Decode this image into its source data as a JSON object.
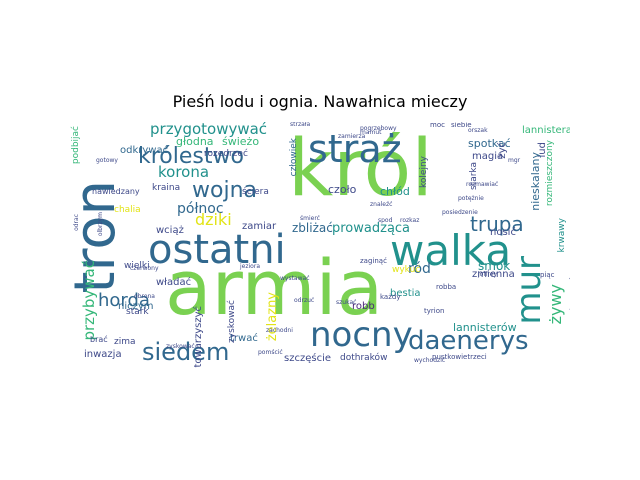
{
  "figure": {
    "title": "Pieśń lodu i ognia. Nawałnica mieczy"
  },
  "palette": {
    "green": "#7ad151",
    "lime": "#b5de2b",
    "teal": "#21918c",
    "blue": "#31688e",
    "slate": "#3e4989",
    "purple": "#482878",
    "seafoam": "#35b779",
    "yellow": "#e2e418"
  },
  "words": [
    {
      "id": "krol",
      "text": "król",
      "color": "#7ad151"
    },
    {
      "id": "armia",
      "text": "armia",
      "color": "#7ad151"
    },
    {
      "id": "tron",
      "text": "tron",
      "color": "#31688e"
    },
    {
      "id": "ostatni",
      "text": "ostatni",
      "color": "#31688e"
    },
    {
      "id": "walka",
      "text": "walka",
      "color": "#21918c"
    },
    {
      "id": "straz",
      "text": "straż",
      "color": "#31688e"
    },
    {
      "id": "nocny",
      "text": "nocny",
      "color": "#31688e"
    },
    {
      "id": "mur",
      "text": "mur",
      "color": "#21918c"
    },
    {
      "id": "daenerys",
      "text": "daenerys",
      "color": "#31688e"
    },
    {
      "id": "krolestwo",
      "text": "królestwo",
      "color": "#31688e"
    },
    {
      "id": "siedem",
      "text": "siedem",
      "color": "#31688e"
    },
    {
      "id": "wojna",
      "text": "wojna",
      "color": "#31688e"
    },
    {
      "id": "przygotowywac",
      "text": "przygotowywać",
      "color": "#21918c"
    },
    {
      "id": "horda",
      "text": "horda",
      "color": "#31688e"
    },
    {
      "id": "trupa",
      "text": "trupa",
      "color": "#31688e"
    },
    {
      "id": "korona",
      "text": "korona",
      "color": "#21918c"
    },
    {
      "id": "polnoc",
      "text": "północ",
      "color": "#31688e"
    },
    {
      "id": "dziki",
      "text": "dziki",
      "color": "#e2e418"
    },
    {
      "id": "prowadzaca",
      "text": "prowadząca",
      "color": "#21918c"
    },
    {
      "id": "przybywac",
      "text": "przybywać",
      "color": "#35b779"
    },
    {
      "id": "zywy",
      "text": "żywy",
      "color": "#35b779"
    },
    {
      "id": "lannisterow",
      "text": "lannisterów",
      "color": "#21918c"
    },
    {
      "id": "smok",
      "text": "smok",
      "color": "#21918c"
    },
    {
      "id": "rod",
      "text": "ród",
      "color": "#31688e"
    },
    {
      "id": "niczym",
      "text": "niczym",
      "color": "#31688e"
    },
    {
      "id": "zelazny",
      "text": "żelazny",
      "color": "#e2e418"
    },
    {
      "id": "zamiar",
      "text": "zamiar",
      "color": "#3e4989"
    },
    {
      "id": "wiaz",
      "text": "wciąż",
      "color": "#3e4989"
    },
    {
      "id": "zblizac",
      "text": "zbliżać",
      "color": "#31688e"
    },
    {
      "id": "towarzyszyc",
      "text": "towarzyszyć",
      "color": "#3e4989"
    },
    {
      "id": "trwac",
      "text": "trwać",
      "color": "#31688e"
    },
    {
      "id": "szczescie",
      "text": "szczęście",
      "color": "#3e4989"
    },
    {
      "id": "dothrakow",
      "text": "dothraków",
      "color": "#3e4989"
    },
    {
      "id": "inwazja",
      "text": "inwazja",
      "color": "#3e4989"
    },
    {
      "id": "zima",
      "text": "zima",
      "color": "#3e4989"
    },
    {
      "id": "czolo",
      "text": "czoło",
      "color": "#3e4989"
    },
    {
      "id": "chlod",
      "text": "chłód",
      "color": "#21918c"
    },
    {
      "id": "nosic",
      "text": "nosić",
      "color": "#3e4989"
    },
    {
      "id": "robb",
      "text": "robb",
      "color": "#482878"
    },
    {
      "id": "bestia",
      "text": "bestia",
      "color": "#21918c"
    },
    {
      "id": "zmienna",
      "text": "zmienna",
      "color": "#3e4989"
    },
    {
      "id": "wykuc",
      "text": "wykuć",
      "color": "#e2e418"
    },
    {
      "id": "magia",
      "text": "magia",
      "color": "#3e4989"
    },
    {
      "id": "spotkac",
      "text": "spotkać",
      "color": "#31688e"
    },
    {
      "id": "odkrywac",
      "text": "odkrywać",
      "color": "#31688e"
    },
    {
      "id": "glodna",
      "text": "głodna",
      "color": "#35b779"
    },
    {
      "id": "swiezo",
      "text": "świeżo",
      "color": "#35b779"
    },
    {
      "id": "rozedrzec",
      "text": "rozedrzeć",
      "color": "#3e4989"
    },
    {
      "id": "czlowiek",
      "text": "człowiek",
      "color": "#31688e"
    },
    {
      "id": "lannisterami",
      "text": "lannisterami",
      "color": "#35b779"
    },
    {
      "id": "lud",
      "text": "lud",
      "color": "#3e4989"
    },
    {
      "id": "niesklalany",
      "text": "nieskalany",
      "color": "#31688e"
    },
    {
      "id": "rozmieszczony",
      "text": "rozmieszczony",
      "color": "#35b779"
    },
    {
      "id": "krwawy",
      "text": "krwawy",
      "color": "#21918c"
    },
    {
      "id": "starka",
      "text": "starka",
      "color": "#3e4989"
    },
    {
      "id": "zyc",
      "text": "żyć",
      "color": "#3e4989"
    },
    {
      "id": "kolejny",
      "text": "kolejny",
      "color": "#3e4989"
    },
    {
      "id": "podbijac",
      "text": "podbijać",
      "color": "#35b779"
    },
    {
      "id": "kraina",
      "text": "kraina",
      "color": "#3e4989"
    },
    {
      "id": "sciera",
      "text": "ściera",
      "color": "#3e4989"
    },
    {
      "id": "wladac",
      "text": "władać",
      "color": "#3e4989"
    },
    {
      "id": "wielki",
      "text": "wielki",
      "color": "#3e4989"
    },
    {
      "id": "stark",
      "text": "stark",
      "color": "#3e4989"
    },
    {
      "id": "zyskowac",
      "text": "zyskować",
      "color": "#3e4989"
    },
    {
      "id": "brac",
      "text": "brać",
      "color": "#3e4989"
    },
    {
      "id": "chalia",
      "text": "chalia",
      "color": "#e2e418"
    },
    {
      "id": "nawiedzany",
      "text": "nawiedzany",
      "color": "#3e4989"
    },
    {
      "id": "odrac",
      "text": "odrac",
      "color": "#3e4989"
    },
    {
      "id": "wystawac",
      "text": "wystawać",
      "color": "#3e4989"
    },
    {
      "id": "zyskowac2",
      "text": "zyskować",
      "color": "#3e4989"
    },
    {
      "id": "jeziora",
      "text": "jeziora",
      "color": "#3e4989"
    },
    {
      "id": "posiedzenie",
      "text": "posiedzenie",
      "color": "#3e4989"
    },
    {
      "id": "znalezc",
      "text": "znaleźć",
      "color": "#3e4989"
    },
    {
      "id": "mamut",
      "text": "mamut",
      "color": "#3e4989"
    },
    {
      "id": "moc",
      "text": "moc",
      "color": "#3e4989"
    },
    {
      "id": "siebie",
      "text": "siebie",
      "color": "#3e4989"
    },
    {
      "id": "orszak",
      "text": "orszak",
      "color": "#3e4989"
    },
    {
      "id": "poteznie",
      "text": "potężnie",
      "color": "#3e4989"
    },
    {
      "id": "rozmawiac",
      "text": "rozmawiać",
      "color": "#3e4989"
    },
    {
      "id": "pomscic",
      "text": "pomścić",
      "color": "#3e4989"
    },
    {
      "id": "jofrey",
      "text": "joffrey",
      "color": "#3e4989"
    },
    {
      "id": "piac",
      "text": "piąc",
      "color": "#3e4989"
    },
    {
      "id": "tyrion",
      "text": "tyrion",
      "color": "#3e4989"
    },
    {
      "id": "pustkowietrzeci",
      "text": "pustkowietrzeci",
      "color": "#3e4989"
    },
    {
      "id": "wychodzic",
      "text": "wychodzić",
      "color": "#3e4989"
    },
    {
      "id": "kazdy",
      "text": "każdy",
      "color": "#3e4989"
    },
    {
      "id": "robba",
      "text": "robba",
      "color": "#3e4989"
    },
    {
      "id": "zaginac",
      "text": "zaginąć",
      "color": "#3e4989"
    },
    {
      "id": "spod",
      "text": "spod",
      "color": "#3e4989"
    },
    {
      "id": "rozkaz",
      "text": "rozkaz",
      "color": "#3e4989"
    },
    {
      "id": "szukac",
      "text": "szukać",
      "color": "#3e4989"
    },
    {
      "id": "smierc",
      "text": "śmierć",
      "color": "#3e4989"
    },
    {
      "id": "odrzuc",
      "text": "odrzuć",
      "color": "#3e4989"
    },
    {
      "id": "zamierza",
      "text": "zamierza",
      "color": "#3e4989"
    },
    {
      "id": "pogrzebowy",
      "text": "pogrzebowy",
      "color": "#3e4989"
    },
    {
      "id": "strzala",
      "text": "strzała",
      "color": "#3e4989"
    },
    {
      "id": "czerwony",
      "text": "czerwony",
      "color": "#3e4989"
    },
    {
      "id": "obrona",
      "text": "obrona",
      "color": "#3e4989"
    },
    {
      "id": "gotowy",
      "text": "gotowy",
      "color": "#3e4989"
    },
    {
      "id": "olbrzym",
      "text": "olbrzym",
      "color": "#3e4989"
    },
    {
      "id": "targaryenow",
      "text": "targaryenów",
      "color": "#3e4989"
    },
    {
      "id": "zachodni",
      "text": "zachodni",
      "color": "#3e4989"
    },
    {
      "id": "mgr",
      "text": "mgr",
      "color": "#3e4989"
    }
  ]
}
